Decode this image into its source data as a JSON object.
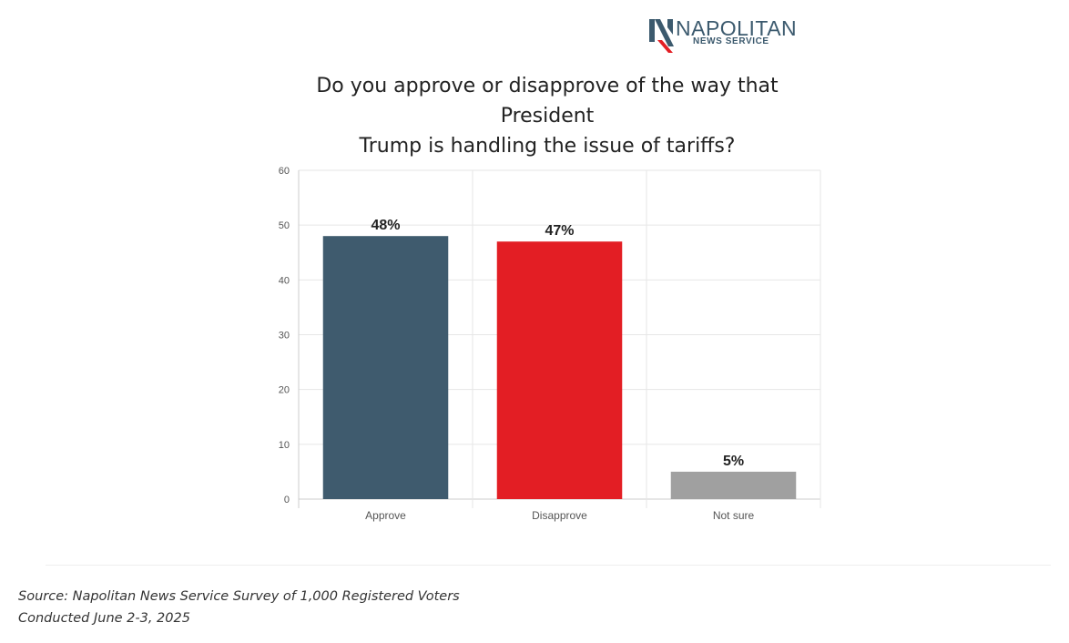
{
  "logo": {
    "name": "NAPOLITAN",
    "subtitle": "NEWS SERVICE",
    "letter": "N"
  },
  "chart_title_line1": "Do you approve or disapprove of the way that President",
  "chart_title_line2": "Trump is handling the issue of tariffs?",
  "source_line1": "Source: Napolitan News Service Survey of 1,000 Registered Voters",
  "source_line2": "Conducted June 2-3, 2025",
  "colors": {
    "approve": "#3f5b6e",
    "disapprove": "#e31e24",
    "not_sure": "#a0a0a0",
    "logo_blue": "#3c5a6e",
    "logo_red": "#e31e24"
  },
  "chart_data": {
    "type": "bar",
    "title": "Do you approve or disapprove of the way that President Trump is handling the issue of tariffs?",
    "categories": [
      "Approve",
      "Disapprove",
      "Not sure"
    ],
    "values": [
      48,
      47,
      5
    ],
    "data_labels": [
      "48%",
      "47%",
      "5%"
    ],
    "colors": [
      "#3f5b6e",
      "#e31e24",
      "#a0a0a0"
    ],
    "ylim": [
      0,
      60
    ],
    "yticks": [
      0,
      10,
      20,
      30,
      40,
      50,
      60
    ],
    "xlabel": "",
    "ylabel": "",
    "grid": true,
    "legend": "none"
  }
}
